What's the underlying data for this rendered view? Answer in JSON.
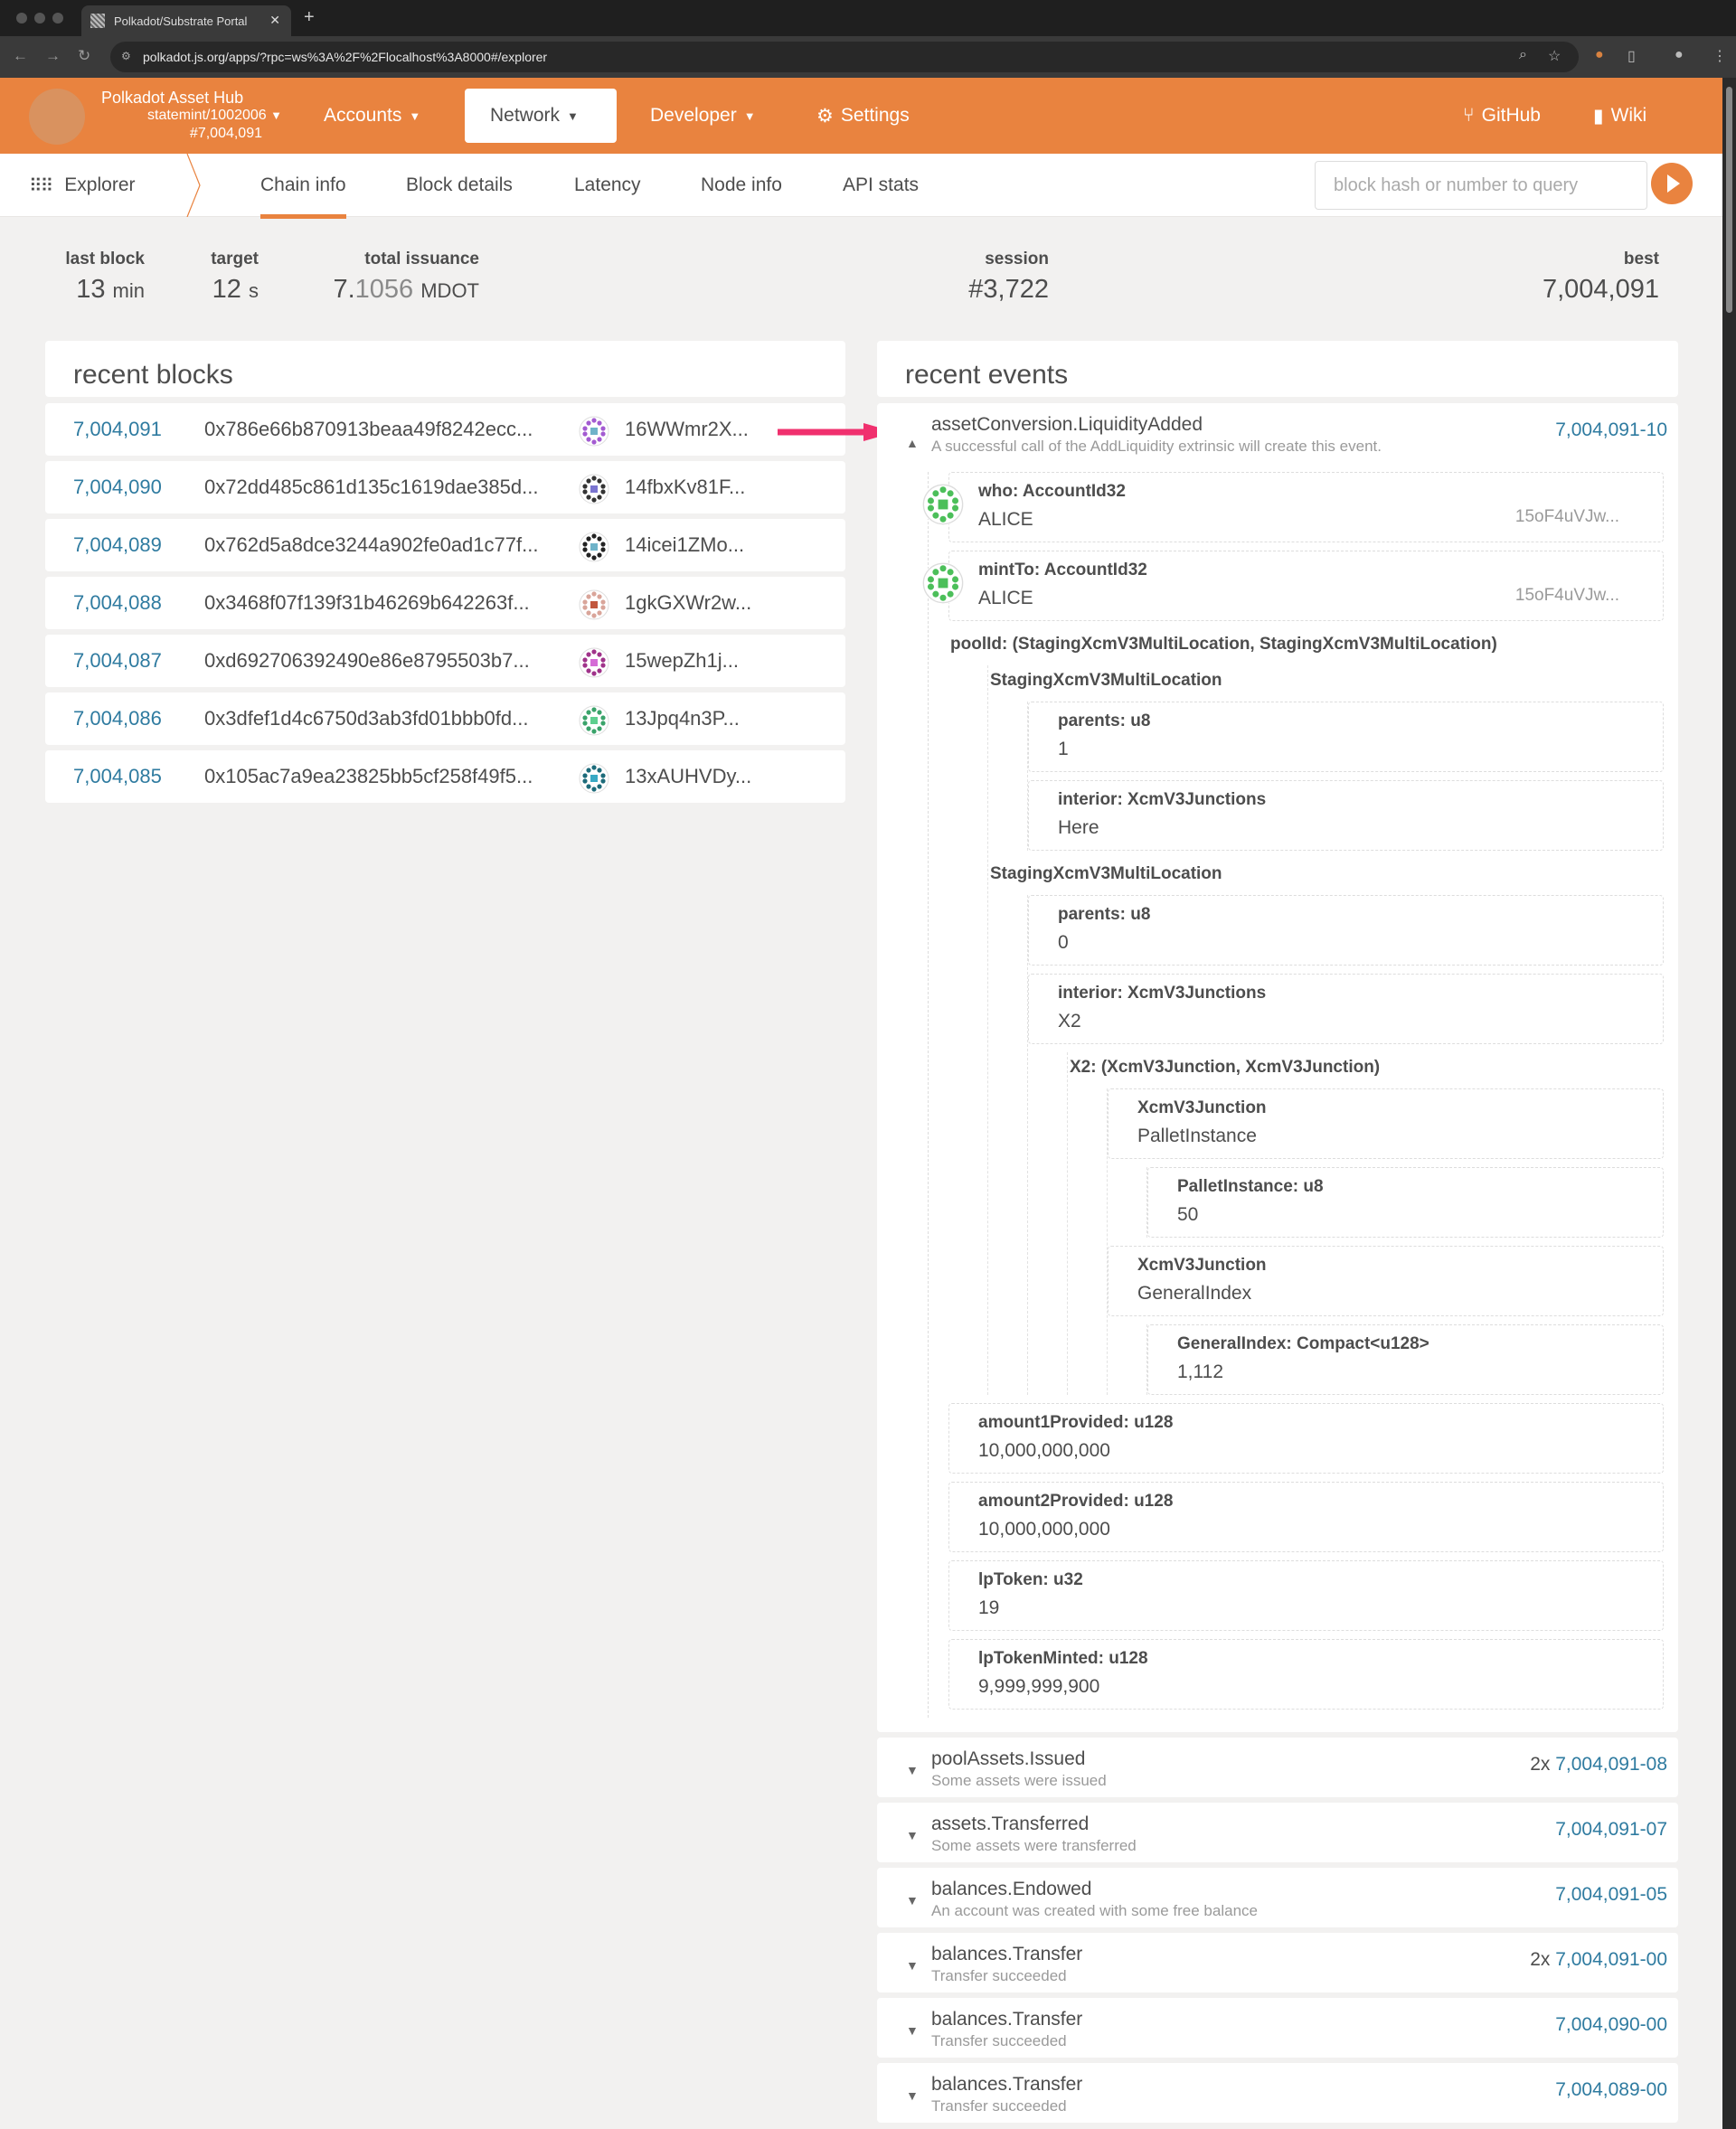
{
  "browser": {
    "tab_title": "Polkadot/Substrate Portal",
    "url": "polkadot.js.org/apps/?rpc=ws%3A%2F%2Flocalhost%3A8000#/explorer"
  },
  "header": {
    "chain_name": "Polkadot Asset Hub",
    "chain_spec": "statemint/1002006",
    "chain_block": "#7,004,091",
    "menu": [
      {
        "label": "Accounts"
      },
      {
        "label": "Network"
      },
      {
        "label": "Developer"
      },
      {
        "label": "Settings"
      }
    ],
    "links": [
      {
        "label": "GitHub"
      },
      {
        "label": "Wiki"
      }
    ],
    "brand_color": "#e9833f"
  },
  "subnav": {
    "section": "Explorer",
    "tabs": [
      "Chain info",
      "Block details",
      "Latency",
      "Node info",
      "API stats"
    ],
    "active_tab": "Chain info",
    "query_placeholder": "block hash or number to query"
  },
  "stats": {
    "last_block": {
      "label": "last block",
      "value": "13",
      "unit": "min"
    },
    "target": {
      "label": "target",
      "value": "12",
      "unit": "s"
    },
    "total_issuance": {
      "label": "total issuance",
      "int": "7.",
      "frac": "1056",
      "unit": "MDOT"
    },
    "session": {
      "label": "session",
      "value": "#3,722"
    },
    "best": {
      "label": "best",
      "value": "7,004,091"
    }
  },
  "recent_blocks": {
    "title": "recent blocks",
    "rows": [
      {
        "number": "7,004,091",
        "hash": "0x786e66b870913beaa49f8242ecc...",
        "author": "16WWmr2X...",
        "icon_color": "#a35bd1",
        "icon_center": "#6fb3c9"
      },
      {
        "number": "7,004,090",
        "hash": "0x72dd485c861d135c1619dae385d...",
        "author": "14fbxKv81F...",
        "icon_color": "#333333",
        "icon_center": "#7a74d0"
      },
      {
        "number": "7,004,089",
        "hash": "0x762d5a8dce3244a902fe0ad1c77f...",
        "author": "14icei1ZMo...",
        "icon_color": "#222222",
        "icon_center": "#6fb3c9"
      },
      {
        "number": "7,004,088",
        "hash": "0x3468f07f139f31b46269b642263f...",
        "author": "1gkGXWr2w...",
        "icon_color": "#d9a59a",
        "icon_center": "#c2583f"
      },
      {
        "number": "7,004,087",
        "hash": "0xd692706392490e86e8795503b7...",
        "author": "15wepZh1j...",
        "icon_color": "#a0338a",
        "icon_center": "#d56bd6"
      },
      {
        "number": "7,004,086",
        "hash": "0x3dfef1d4c6750d3ab3fd01bbb0fd...",
        "author": "13Jpq4n3P...",
        "icon_color": "#3aa36a",
        "icon_center": "#5ecf8f"
      },
      {
        "number": "7,004,085",
        "hash": "0x105ac7a9ea23825bb5cf258f49f5...",
        "author": "13xAUHVDy...",
        "icon_color": "#1d6b7a",
        "icon_center": "#39a9c4"
      }
    ]
  },
  "recent_events": {
    "title": "recent events",
    "expanded": {
      "title": "assetConversion.LiquidityAdded",
      "description": "A successful call of the AddLiquidity extrinsic will create this event.",
      "id": "7,004,091-10",
      "params": [
        {
          "label": "who: AccountId32",
          "value": "ALICE",
          "address": "15oF4uVJw...",
          "avatar_color": "#4cbf5a"
        },
        {
          "label": "mintTo: AccountId32",
          "value": "ALICE",
          "address": "15oF4uVJw...",
          "avatar_color": "#4cbf5a"
        },
        {
          "label": "poolId: (StagingXcmV3MultiLocation, StagingXcmV3MultiLocation)",
          "children": [
            {
              "label": "StagingXcmV3MultiLocation",
              "children": [
                {
                  "label": "parents: u8",
                  "value": "1"
                },
                {
                  "label": "interior: XcmV3Junctions",
                  "value": "Here"
                }
              ]
            },
            {
              "label": "StagingXcmV3MultiLocation",
              "children": [
                {
                  "label": "parents: u8",
                  "value": "0"
                },
                {
                  "label": "interior: XcmV3Junctions",
                  "value": "X2",
                  "children": [
                    {
                      "label": "X2: (XcmV3Junction, XcmV3Junction)",
                      "children": [
                        {
                          "label": "XcmV3Junction",
                          "value": "PalletInstance",
                          "children": [
                            {
                              "label": "PalletInstance: u8",
                              "value": "50"
                            }
                          ]
                        },
                        {
                          "label": "XcmV3Junction",
                          "value": "GeneralIndex",
                          "children": [
                            {
                              "label": "GeneralIndex: Compact<u128>",
                              "value": "1,112"
                            }
                          ]
                        }
                      ]
                    }
                  ]
                }
              ]
            }
          ]
        },
        {
          "label": "amount1Provided: u128",
          "value": "10,000,000,000"
        },
        {
          "label": "amount2Provided: u128",
          "value": "10,000,000,000"
        },
        {
          "label": "lpToken: u32",
          "value": "19"
        },
        {
          "label": "lpTokenMinted: u128",
          "value": "9,999,999,900"
        }
      ]
    },
    "collapsed": [
      {
        "title": "poolAssets.Issued",
        "description": "Some assets were issued",
        "count": "2x",
        "id": "7,004,091-08"
      },
      {
        "title": "assets.Transferred",
        "description": "Some assets were transferred",
        "count": "",
        "id": "7,004,091-07"
      },
      {
        "title": "balances.Endowed",
        "description": "An account was created with some free balance",
        "count": "",
        "id": "7,004,091-05"
      },
      {
        "title": "balances.Transfer",
        "description": "Transfer succeeded",
        "count": "2x",
        "id": "7,004,091-00"
      },
      {
        "title": "balances.Transfer",
        "description": "Transfer succeeded",
        "count": "",
        "id": "7,004,090-00"
      },
      {
        "title": "balances.Transfer",
        "description": "Transfer succeeded",
        "count": "",
        "id": "7,004,089-00"
      }
    ]
  },
  "link_color": "#2f7ba0",
  "annotation_arrow_color": "#f0306e"
}
